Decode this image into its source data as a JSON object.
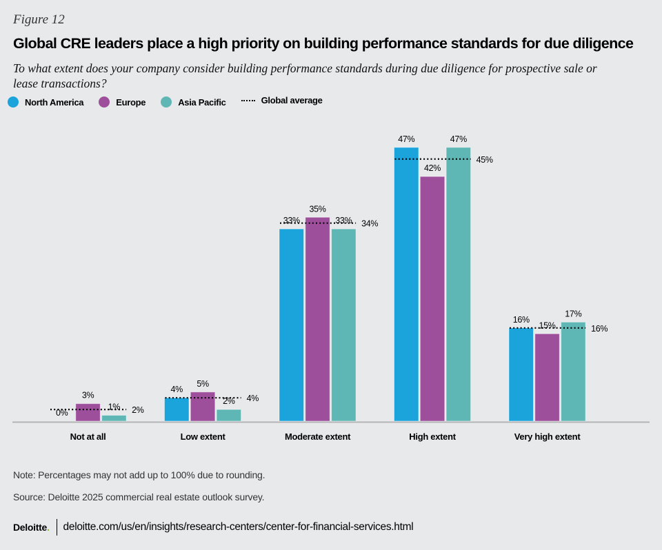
{
  "figure_label": "Figure 12",
  "title": "Global CRE leaders place a high priority on building performance standards for due diligence",
  "subtitle": "To what extent does your company consider building performance standards during due diligence for prospective sale or lease transactions?",
  "legend": [
    {
      "name": "North America",
      "color": "#1ba3dc"
    },
    {
      "name": "Europe",
      "color": "#9d4f9c"
    },
    {
      "name": "Asia Pacific",
      "color": "#5fb7b5"
    },
    {
      "name": "Global average",
      "style": "dotted"
    }
  ],
  "chart_data": {
    "type": "bar",
    "title": "Global CRE leaders place a high priority on building performance standards for due diligence",
    "xlabel": "",
    "ylabel": "",
    "ylim": [
      0,
      50
    ],
    "grid": false,
    "legend_position": "top-left",
    "categories": [
      "Not at all",
      "Low extent",
      "Moderate extent",
      "High extent",
      "Very high extent"
    ],
    "series": [
      {
        "name": "North America",
        "color": "#1ba3dc",
        "values": [
          0,
          4,
          33,
          47,
          16
        ],
        "labels": [
          "0%",
          "4%",
          "33%",
          "47%",
          "16%"
        ]
      },
      {
        "name": "Europe",
        "color": "#9d4f9c",
        "values": [
          3,
          5,
          35,
          42,
          15
        ],
        "labels": [
          "3%",
          "5%",
          "35%",
          "42%",
          "15%"
        ]
      },
      {
        "name": "Asia Pacific",
        "color": "#5fb7b5",
        "values": [
          1,
          2,
          33,
          47,
          17
        ],
        "labels": [
          "1%",
          "2%",
          "33%",
          "47%",
          "17%"
        ]
      }
    ],
    "global_average": {
      "name": "Global average",
      "values": [
        2,
        4,
        34,
        45,
        16
      ],
      "labels": [
        "2%",
        "4%",
        "34%",
        "45%",
        "16%"
      ]
    }
  },
  "note": "Note: Percentages may not add up to 100% due to rounding.",
  "source": "Source: Deloitte 2025 commercial real estate outlook survey.",
  "footer": {
    "logo": "Deloitte",
    "logo_dot": ".",
    "url": "deloitte.com/us/en/insights/research-centers/center-for-financial-services.html"
  }
}
